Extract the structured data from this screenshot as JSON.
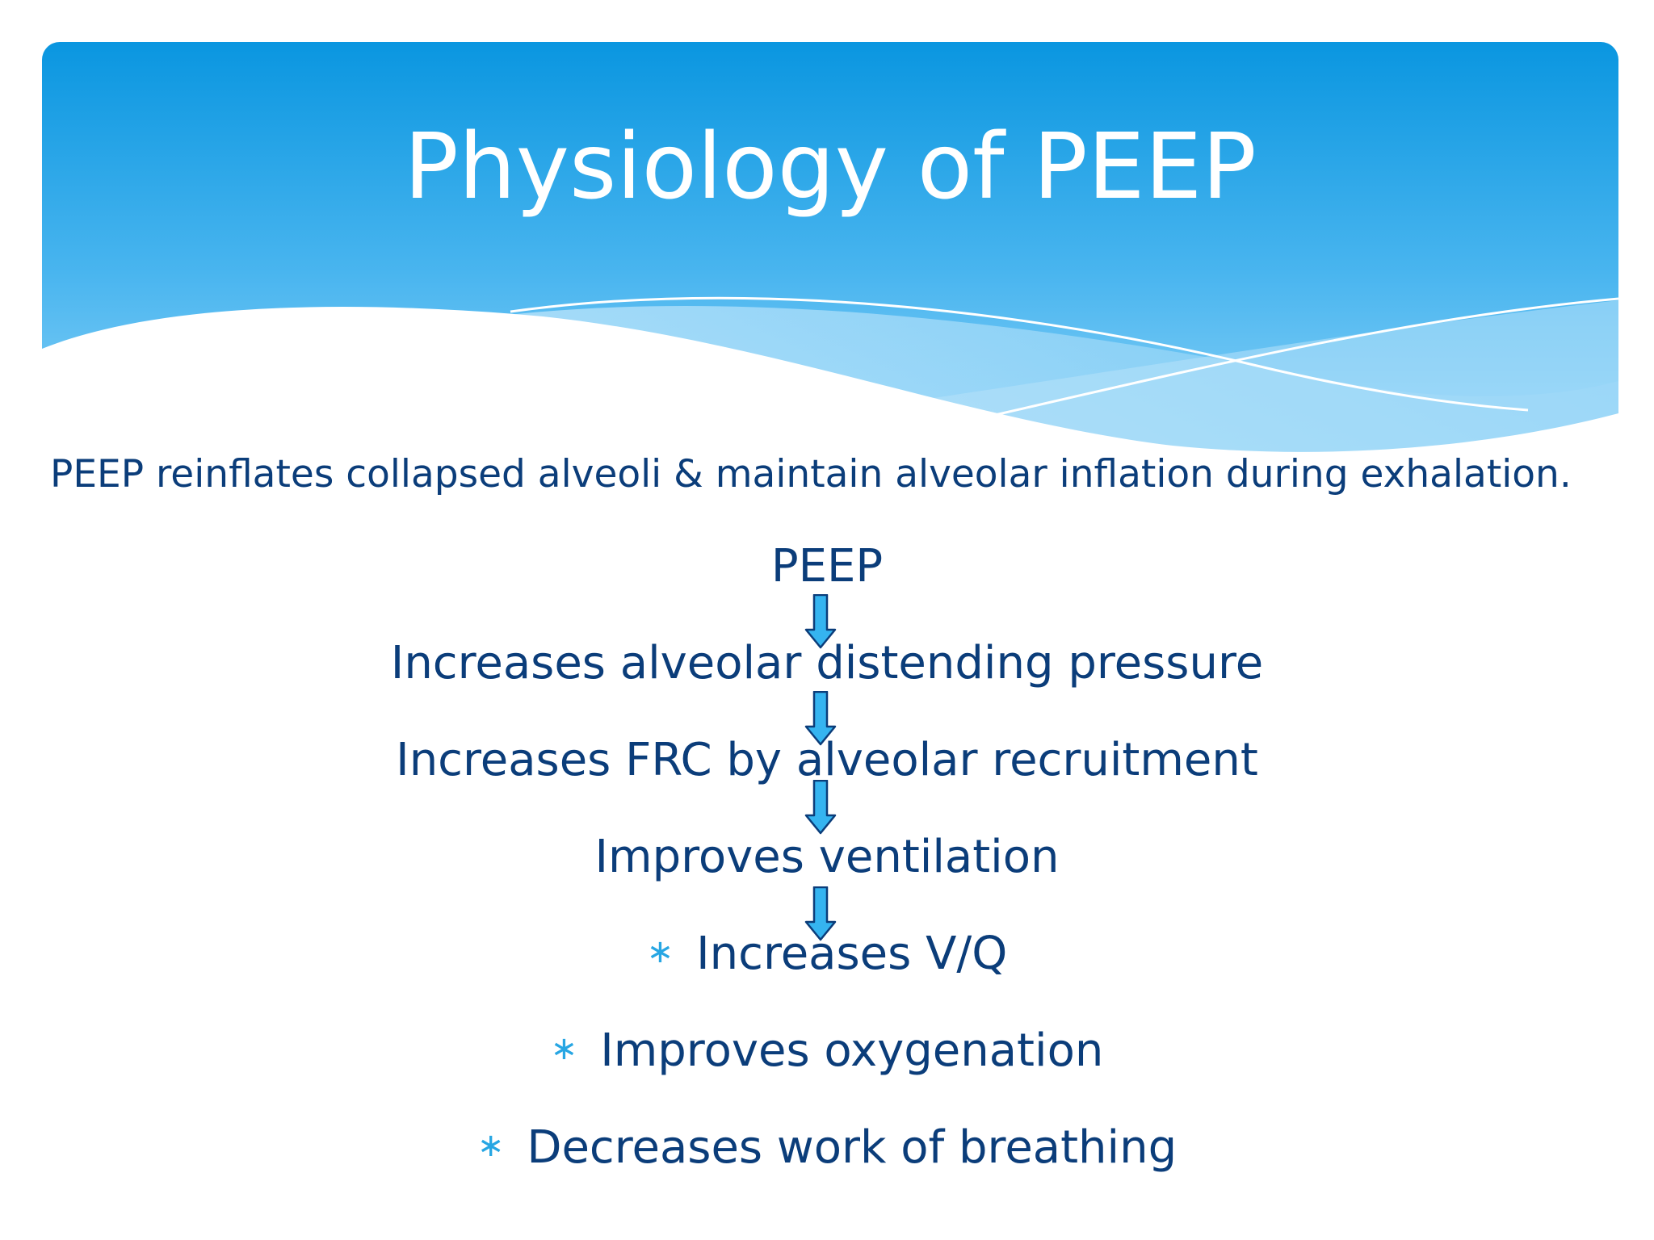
{
  "slide": {
    "title": "Physiology of PEEP",
    "intro": "PEEP reinflates collapsed alveoli & maintain alveolar inflation during exhalation.",
    "flow": [
      "PEEP",
      "Increases alveolar distending pressure",
      "Increases FRC by alveolar recruitment",
      "Improves ventilation"
    ],
    "bullets": [
      "Increases V/Q",
      "Improves oxygenation",
      "Decreases work of breathing"
    ],
    "bullet_symbol": "∗"
  },
  "colors": {
    "header_top": "#0a96e0",
    "header_bottom": "#72c9f7",
    "text": "#0b3d7a",
    "arrow_fill": "#35b4f0",
    "arrow_stroke": "#0b3d7a",
    "bullet": "#27a6e3"
  }
}
